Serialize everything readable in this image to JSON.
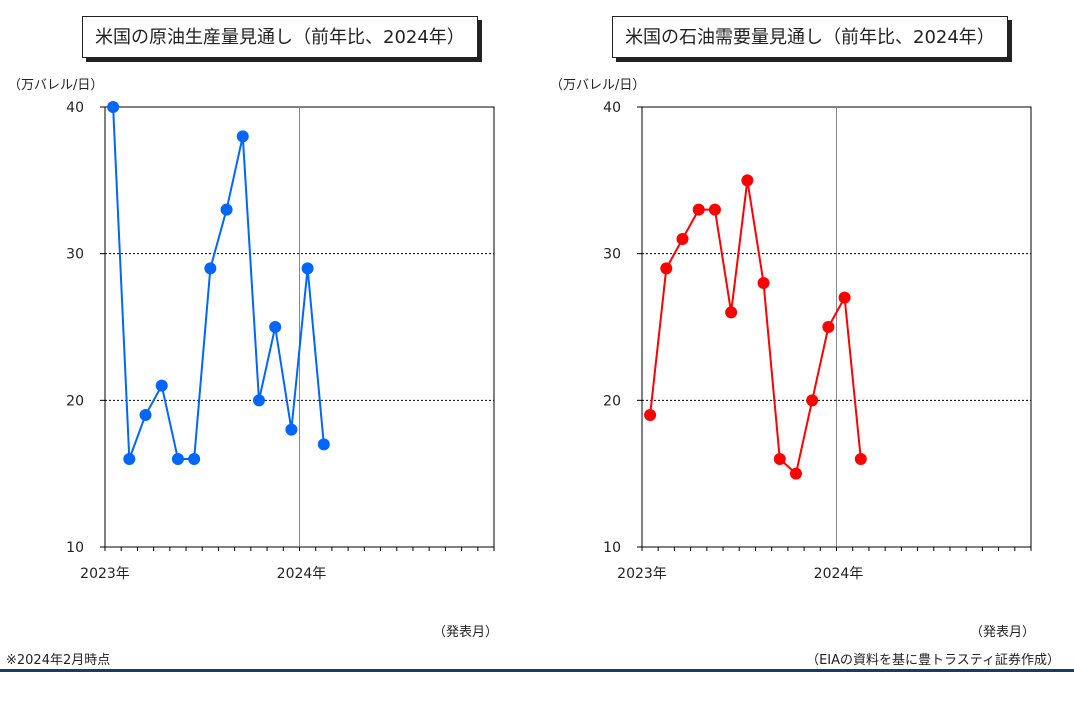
{
  "charts": [
    {
      "title": "米国の原油生産量見通し（前年比、2024年）",
      "unit_label": "（万バレル/日）",
      "xaxis_caption": "（発表月）",
      "color": "#0066ff"
    },
    {
      "title": "米国の石油需要量見通し（前年比、2024年）",
      "unit_label": "（万バレル/日）",
      "xaxis_caption": "（発表月）",
      "color": "#ff0000"
    }
  ],
  "footer": {
    "note": "※2024年2月時点",
    "source": "（EIAの資料を基に豊トラスティ証券作成）"
  },
  "chart_data": [
    {
      "type": "line",
      "title": "米国の原油生産量見通し（前年比、2024年）",
      "ylabel": "（万バレル/日）",
      "xlabel": "（発表月）",
      "ylim": [
        10,
        40
      ],
      "yticks": [
        10,
        20,
        30,
        40
      ],
      "x_tick_labels": [
        "2023年",
        "2024年"
      ],
      "x": [
        "2023-01",
        "2023-02",
        "2023-03",
        "2023-04",
        "2023-05",
        "2023-06",
        "2023-07",
        "2023-08",
        "2023-09",
        "2023-10",
        "2023-11",
        "2023-12",
        "2024-01",
        "2024-02"
      ],
      "values": [
        40,
        16,
        19,
        21,
        16,
        16,
        29,
        33,
        38,
        20,
        25,
        18,
        29,
        17
      ],
      "gridlines": [
        20,
        30
      ],
      "color": "#0066ff"
    },
    {
      "type": "line",
      "title": "米国の石油需要量見通し（前年比、2024年）",
      "ylabel": "（万バレル/日）",
      "xlabel": "（発表月）",
      "ylim": [
        10,
        40
      ],
      "yticks": [
        10,
        20,
        30,
        40
      ],
      "x_tick_labels": [
        "2023年",
        "2024年"
      ],
      "x": [
        "2023-01",
        "2023-02",
        "2023-03",
        "2023-04",
        "2023-05",
        "2023-06",
        "2023-07",
        "2023-08",
        "2023-09",
        "2023-10",
        "2023-11",
        "2023-12",
        "2024-01",
        "2024-02"
      ],
      "values": [
        19,
        29,
        31,
        33,
        33,
        26,
        35,
        28,
        16,
        15,
        20,
        25,
        27,
        16
      ],
      "gridlines": [
        20,
        30
      ],
      "color": "#ff0000"
    }
  ]
}
